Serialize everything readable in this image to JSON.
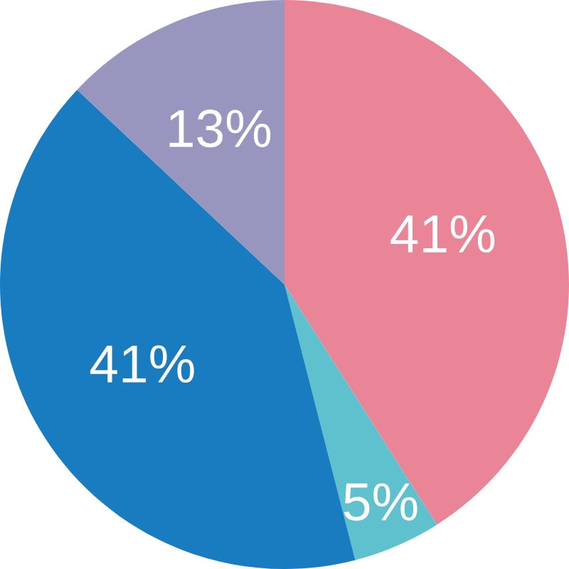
{
  "chart_data": {
    "type": "pie",
    "values": [
      41,
      5,
      41,
      13
    ],
    "colors": [
      "#ea8497",
      "#5ec1cd",
      "#1a7cc0",
      "#9896be"
    ],
    "value_labels": [
      "41%",
      "5%",
      "41%",
      "13%"
    ]
  }
}
